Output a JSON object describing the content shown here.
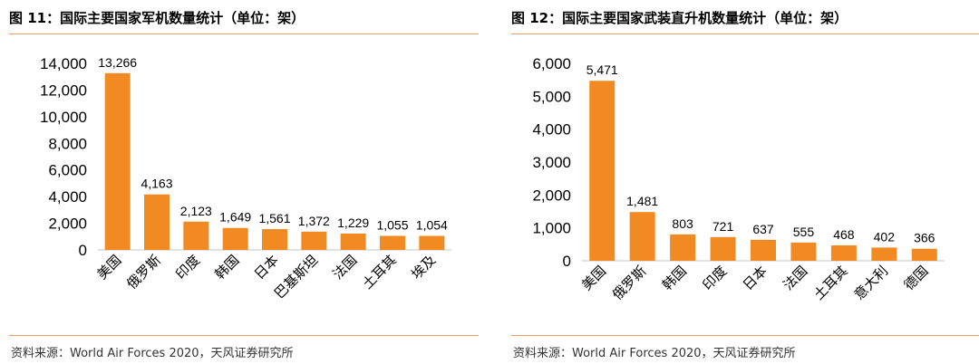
{
  "panels": [
    {
      "title": "图 11：国际主要国家军机数量统计（单位：架）",
      "source": "资料来源：World Air Forces 2020，天风证券研究所"
    },
    {
      "title": "图 12：国际主要国家武装直升机数量统计（单位：架）",
      "source": "资料来源：World Air Forces 2020，天风证券研究所"
    }
  ],
  "colors": {
    "bar": "#f28a24",
    "axis": "#d9d9d9",
    "rule": "#e8a068"
  },
  "chart_data": [
    {
      "type": "bar",
      "title": "",
      "xlabel": "",
      "ylabel": "",
      "categories": [
        "美国",
        "俄罗斯",
        "印度",
        "韩国",
        "日本",
        "巴基斯坦",
        "法国",
        "土耳其",
        "埃及"
      ],
      "values": [
        13266,
        4163,
        2123,
        1649,
        1561,
        1372,
        1229,
        1055,
        1054
      ],
      "value_labels": [
        "13,266",
        "4,163",
        "2,123",
        "1,649",
        "1,561",
        "1,372",
        "1,229",
        "1,055",
        "1,054"
      ],
      "ylim": [
        0,
        14000
      ],
      "yticks": [
        0,
        2000,
        4000,
        6000,
        8000,
        10000,
        12000,
        14000
      ],
      "ytick_labels": [
        "0",
        "2,000",
        "4,000",
        "6,000",
        "8,000",
        "10,000",
        "12,000",
        "14,000"
      ],
      "grid": false,
      "legend": "none"
    },
    {
      "type": "bar",
      "title": "",
      "xlabel": "",
      "ylabel": "",
      "categories": [
        "美国",
        "俄罗斯",
        "韩国",
        "印度",
        "日本",
        "法国",
        "土耳其",
        "意大利",
        "德国"
      ],
      "values": [
        5471,
        1481,
        803,
        721,
        637,
        555,
        468,
        402,
        366
      ],
      "value_labels": [
        "5,471",
        "1,481",
        "803",
        "721",
        "637",
        "555",
        "468",
        "402",
        "366"
      ],
      "ylim": [
        0,
        6000
      ],
      "yticks": [
        0,
        1000,
        2000,
        3000,
        4000,
        5000,
        6000
      ],
      "ytick_labels": [
        "0",
        "1,000",
        "2,000",
        "3,000",
        "4,000",
        "5,000",
        "6,000"
      ],
      "grid": false,
      "legend": "none"
    }
  ]
}
